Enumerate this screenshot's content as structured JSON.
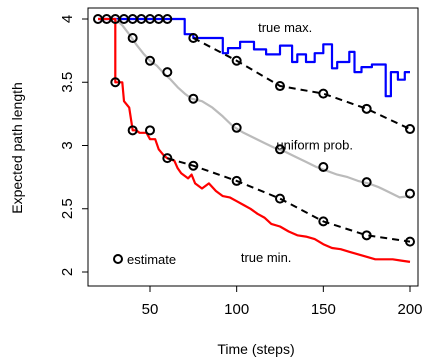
{
  "chart_data": {
    "type": "line",
    "title": "",
    "xlabel": "Time (steps)",
    "ylabel": "Expected path length",
    "xlim": [
      20,
      200
    ],
    "ylim": [
      2,
      4
    ],
    "x_ticks": [
      50,
      100,
      150,
      200
    ],
    "x_tick_labels": [
      "50",
      "100",
      "150",
      "200"
    ],
    "y_ticks": [
      2,
      2.5,
      3,
      3.5,
      4
    ],
    "y_tick_labels": [
      "2",
      "2.5",
      "3",
      "3.5",
      "4"
    ],
    "grid": false,
    "legend": {
      "position": "bottom-left",
      "entries": [
        {
          "label": "estimate",
          "marker": "open-circle",
          "color": "#000000"
        }
      ]
    },
    "annotations": [
      {
        "text": "true max.",
        "x": 128,
        "y": 3.93
      },
      {
        "text": "uniform prob.",
        "x": 145,
        "y": 3.0
      },
      {
        "text": "true min.",
        "x": 117,
        "y": 2.11
      }
    ],
    "series": [
      {
        "color": "#0000ff",
        "style": "solid",
        "points": [
          [
            20,
            4
          ],
          [
            70,
            4
          ],
          [
            70,
            3.88
          ],
          [
            75,
            3.88
          ],
          [
            75,
            3.85
          ],
          [
            92,
            3.85
          ],
          [
            92,
            3.73
          ],
          [
            95,
            3.73
          ],
          [
            95,
            3.77
          ],
          [
            102,
            3.77
          ],
          [
            102,
            3.82
          ],
          [
            110,
            3.82
          ],
          [
            110,
            3.76
          ],
          [
            117,
            3.76
          ],
          [
            117,
            3.72
          ],
          [
            125,
            3.72
          ],
          [
            125,
            3.79
          ],
          [
            132,
            3.79
          ],
          [
            132,
            3.66
          ],
          [
            135,
            3.66
          ],
          [
            135,
            3.72
          ],
          [
            140,
            3.72
          ],
          [
            140,
            3.66
          ],
          [
            145,
            3.66
          ],
          [
            145,
            3.73
          ],
          [
            150,
            3.73
          ],
          [
            150,
            3.8
          ],
          [
            155,
            3.8
          ],
          [
            155,
            3.61
          ],
          [
            158,
            3.61
          ],
          [
            158,
            3.66
          ],
          [
            165,
            3.66
          ],
          [
            165,
            3.74
          ],
          [
            168,
            3.74
          ],
          [
            168,
            3.58
          ],
          [
            172,
            3.58
          ],
          [
            172,
            3.62
          ],
          [
            178,
            3.62
          ],
          [
            178,
            3.64
          ],
          [
            186,
            3.64
          ],
          [
            186,
            3.39
          ],
          [
            189,
            3.39
          ],
          [
            189,
            3.58
          ],
          [
            193,
            3.58
          ],
          [
            193,
            3.52
          ],
          [
            197,
            3.52
          ],
          [
            197,
            3.58
          ],
          [
            200,
            3.58
          ]
        ]
      },
      {
        "color": "#bbbbbb",
        "style": "solid",
        "points": [
          [
            30,
            4
          ],
          [
            34,
            3.95
          ],
          [
            38,
            3.88
          ],
          [
            42,
            3.8
          ],
          [
            46,
            3.73
          ],
          [
            50,
            3.67
          ],
          [
            54,
            3.63
          ],
          [
            58,
            3.57
          ],
          [
            62,
            3.52
          ],
          [
            66,
            3.46
          ],
          [
            70,
            3.41
          ],
          [
            74,
            3.37
          ],
          [
            80,
            3.35
          ],
          [
            86,
            3.3
          ],
          [
            92,
            3.23
          ],
          [
            98,
            3.15
          ],
          [
            104,
            3.1
          ],
          [
            110,
            3.06
          ],
          [
            116,
            3.02
          ],
          [
            122,
            2.98
          ],
          [
            128,
            2.95
          ],
          [
            134,
            2.91
          ],
          [
            140,
            2.87
          ],
          [
            146,
            2.83
          ],
          [
            152,
            2.8
          ],
          [
            158,
            2.77
          ],
          [
            164,
            2.75
          ],
          [
            170,
            2.72
          ],
          [
            176,
            2.7
          ],
          [
            182,
            2.67
          ],
          [
            188,
            2.63
          ],
          [
            194,
            2.59
          ],
          [
            200,
            2.6
          ]
        ]
      },
      {
        "color": "#ff0000",
        "style": "solid",
        "points": [
          [
            20,
            4
          ],
          [
            30,
            4
          ],
          [
            30,
            3.5
          ],
          [
            34,
            3.5
          ],
          [
            35,
            3.35
          ],
          [
            38,
            3.3
          ],
          [
            40,
            3.12
          ],
          [
            42,
            3.12
          ],
          [
            44,
            3.1
          ],
          [
            48,
            3.1
          ],
          [
            50,
            3.05
          ],
          [
            53,
            3.05
          ],
          [
            55,
            2.97
          ],
          [
            58,
            2.92
          ],
          [
            60,
            2.9
          ],
          [
            64,
            2.88
          ],
          [
            66,
            2.82
          ],
          [
            68,
            2.78
          ],
          [
            72,
            2.74
          ],
          [
            74,
            2.77
          ],
          [
            76,
            2.7
          ],
          [
            80,
            2.66
          ],
          [
            84,
            2.7
          ],
          [
            88,
            2.64
          ],
          [
            92,
            2.6
          ],
          [
            96,
            2.59
          ],
          [
            100,
            2.56
          ],
          [
            104,
            2.53
          ],
          [
            108,
            2.5
          ],
          [
            112,
            2.46
          ],
          [
            116,
            2.43
          ],
          [
            120,
            2.38
          ],
          [
            125,
            2.36
          ],
          [
            130,
            2.32
          ],
          [
            135,
            2.29
          ],
          [
            140,
            2.28
          ],
          [
            145,
            2.26
          ],
          [
            150,
            2.22
          ],
          [
            155,
            2.19
          ],
          [
            160,
            2.18
          ],
          [
            165,
            2.16
          ],
          [
            170,
            2.14
          ],
          [
            175,
            2.12
          ],
          [
            180,
            2.1
          ],
          [
            185,
            2.1
          ],
          [
            190,
            2.1
          ],
          [
            195,
            2.09
          ],
          [
            200,
            2.08
          ]
        ]
      },
      {
        "color": "#000000",
        "style": "dashed",
        "markers": "open-circle",
        "points": [
          [
            75,
            3.85
          ],
          [
            100,
            3.67
          ],
          [
            125,
            3.47
          ],
          [
            150,
            3.41
          ],
          [
            175,
            3.29
          ],
          [
            200,
            3.13
          ]
        ]
      },
      {
        "color": "#000000",
        "style": "dashed",
        "markers": "open-circle",
        "points": [
          [
            60,
            2.9
          ],
          [
            75,
            2.84
          ],
          [
            100,
            2.72
          ],
          [
            125,
            2.58
          ],
          [
            150,
            2.4
          ],
          [
            175,
            2.29
          ],
          [
            200,
            2.24
          ]
        ]
      },
      {
        "color": "#000000",
        "style": "none",
        "markers": "open-circle",
        "points": [
          [
            20,
            4
          ],
          [
            25,
            4
          ],
          [
            30,
            4
          ],
          [
            35,
            4
          ],
          [
            40,
            4
          ],
          [
            45,
            4
          ],
          [
            50,
            4
          ],
          [
            55,
            4
          ],
          [
            60,
            4
          ],
          [
            30,
            3.5
          ],
          [
            40,
            3.12
          ],
          [
            50,
            3.12
          ],
          [
            40,
            3.85
          ],
          [
            50,
            3.67
          ],
          [
            60,
            3.58
          ],
          [
            75,
            3.37
          ],
          [
            100,
            3.14
          ],
          [
            125,
            2.97
          ],
          [
            150,
            2.83
          ],
          [
            175,
            2.71
          ],
          [
            200,
            2.62
          ]
        ]
      }
    ]
  }
}
